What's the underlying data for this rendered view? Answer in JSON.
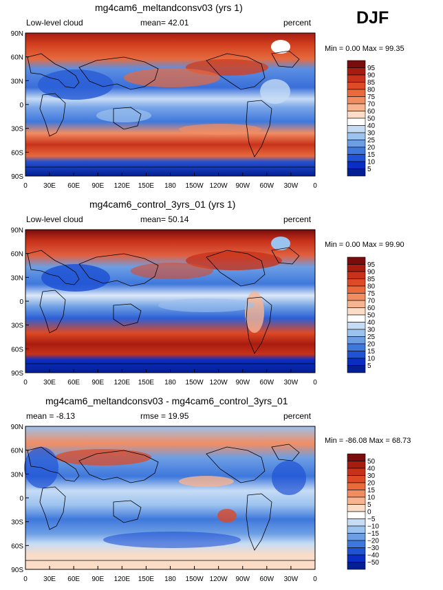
{
  "season": "DJF",
  "panels": [
    {
      "title": "mg4cam6_meltandconsv03 (yrs 1)",
      "left_label": "Low-level cloud",
      "center_label": "mean=  42.01",
      "right_label": "percent",
      "min_max": "Min =    0.00 Max =   99.35",
      "lat_ticks": [
        "90N",
        "60N",
        "30N",
        "0",
        "30S",
        "60S",
        "90S"
      ],
      "lon_ticks": [
        "0",
        "30E",
        "60E",
        "90E",
        "120E",
        "150E",
        "180",
        "150W",
        "120W",
        "90W",
        "60W",
        "30W",
        "0"
      ],
      "colorbar_labels": [
        "95",
        "90",
        "85",
        "80",
        "75",
        "70",
        "60",
        "50",
        "40",
        "30",
        "25",
        "20",
        "15",
        "10",
        "5"
      ],
      "colorbar_colors": [
        "#7a0c0c",
        "#a81c10",
        "#c8321a",
        "#dc4a26",
        "#ea6a3c",
        "#f28d62",
        "#f7b491",
        "#fbdcc6",
        "#ffffff",
        "#c6dcf5",
        "#9cc2ee",
        "#6d9ee3",
        "#3f78dc",
        "#1f52d4",
        "#0a2ec4",
        "#041f93"
      ]
    },
    {
      "title": "mg4cam6_control_3yrs_01 (yrs 1)",
      "left_label": "Low-level cloud",
      "center_label": "mean=  50.14",
      "right_label": "percent",
      "min_max": "Min =    0.00 Max =   99.90",
      "lat_ticks": [
        "90N",
        "60N",
        "30N",
        "0",
        "30S",
        "60S",
        "90S"
      ],
      "lon_ticks": [
        "0",
        "30E",
        "60E",
        "90E",
        "120E",
        "150E",
        "180",
        "150W",
        "120W",
        "90W",
        "60W",
        "30W",
        "0"
      ],
      "colorbar_labels": [
        "95",
        "90",
        "85",
        "80",
        "75",
        "70",
        "60",
        "50",
        "40",
        "30",
        "25",
        "20",
        "15",
        "10",
        "5"
      ],
      "colorbar_colors": [
        "#7a0c0c",
        "#a81c10",
        "#c8321a",
        "#dc4a26",
        "#ea6a3c",
        "#f28d62",
        "#f7b491",
        "#fbdcc6",
        "#ffffff",
        "#c6dcf5",
        "#9cc2ee",
        "#6d9ee3",
        "#3f78dc",
        "#1f52d4",
        "#0a2ec4",
        "#041f93"
      ]
    },
    {
      "title": "mg4cam6_meltandconsv03 - mg4cam6_control_3yrs_01",
      "left_label": "mean =   -8.13",
      "center_label": "rmse =   19.95",
      "right_label": "percent",
      "min_max": "Min = -86.08 Max =   68.73",
      "lat_ticks": [
        "90N",
        "60N",
        "30N",
        "0",
        "30S",
        "60S",
        "90S"
      ],
      "lon_ticks": [
        "0",
        "30E",
        "60E",
        "90E",
        "120E",
        "150E",
        "180",
        "150W",
        "120W",
        "90W",
        "60W",
        "30W",
        "0"
      ],
      "colorbar_labels": [
        "50",
        "40",
        "30",
        "20",
        "15",
        "10",
        "5",
        "0",
        "−5",
        "−10",
        "−15",
        "−20",
        "−30",
        "−40",
        "−50"
      ],
      "colorbar_colors": [
        "#7a0c0c",
        "#a81c10",
        "#c8321a",
        "#dc4a26",
        "#ea6a3c",
        "#f28d62",
        "#f7b491",
        "#fbdcc6",
        "#ffffff",
        "#c6dcf5",
        "#9cc2ee",
        "#6d9ee3",
        "#3f78dc",
        "#1f52d4",
        "#0a2ec4",
        "#041f93"
      ]
    }
  ]
}
